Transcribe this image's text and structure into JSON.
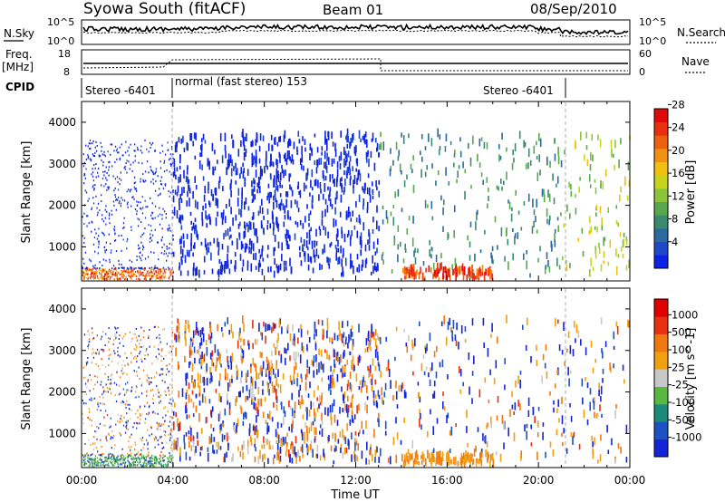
{
  "header": {
    "station": "Syowa South (fitACF)",
    "beam": "Beam 01",
    "date": "08/Sep/2010"
  },
  "noise_panel": {
    "left_label": "N.Sky",
    "right_label": "N.Search",
    "tick_top": "10^5",
    "tick_bottom": "10^0"
  },
  "freq_panel": {
    "left_label_1": "Freq.",
    "left_label_2": "[MHz]",
    "left_tick_top": "18",
    "left_tick_bottom": "8",
    "right_label": "Nave",
    "right_tick_top": "60",
    "right_tick_bottom": "0"
  },
  "cpid_panel": {
    "label": "CPID",
    "modes": [
      {
        "name": "Stereo -6401",
        "start_h": 0,
        "end_h": 4
      },
      {
        "name": "normal (fast stereo) 153",
        "start_h": 4,
        "end_h": 21
      },
      {
        "name": "Stereo -6401",
        "start_h": 21,
        "end_h": 24
      }
    ]
  },
  "chart_data": [
    {
      "type": "heatmap",
      "title": "",
      "ylabel": "Slant Range [km]",
      "xlabel": "",
      "x_range_h": [
        0,
        24
      ],
      "ylim": [
        180,
        4500
      ],
      "yticks": [
        "1000",
        "2000",
        "3000",
        "4000"
      ],
      "colorbar": {
        "label": "Power [dB]",
        "range": [
          0,
          30
        ],
        "ticks": [
          "4",
          "8",
          "12",
          "16",
          "20",
          "24",
          "28"
        ],
        "colors": [
          "#0d22e8",
          "#1f48c8",
          "#2b6aa0",
          "#3a8a6e",
          "#58a84e",
          "#8cc43a",
          "#c8d41c",
          "#f0c010",
          "#f29010",
          "#ee6010",
          "#e83010",
          "#e00a0a"
        ]
      }
    },
    {
      "type": "heatmap",
      "title": "",
      "ylabel": "Slant Range [km]",
      "xlabel": "Time UT",
      "x_range_h": [
        0,
        24
      ],
      "ylim": [
        180,
        4500
      ],
      "yticks": [
        "1000",
        "2000",
        "3000",
        "4000"
      ],
      "xticks": [
        "00:00",
        "04:00",
        "08:00",
        "12:00",
        "16:00",
        "20:00",
        "00:00"
      ],
      "colorbar": {
        "label": "Velocity [m s^-1]",
        "ticks": [
          "1000",
          "500",
          "100",
          "25",
          "-25",
          "-100",
          "-500",
          "-1000"
        ],
        "colors": [
          "#1424d8",
          "#1c52c4",
          "#1c8a78",
          "#58b840",
          "#c8c8c8",
          "#f0a010",
          "#f07810",
          "#e83010",
          "#e00000"
        ]
      }
    }
  ],
  "colors": {
    "power_low": "#0d22e8",
    "power_high": "#e00a0a",
    "axis": "#000000",
    "dashed_mode_line": "#aaaaaa"
  }
}
